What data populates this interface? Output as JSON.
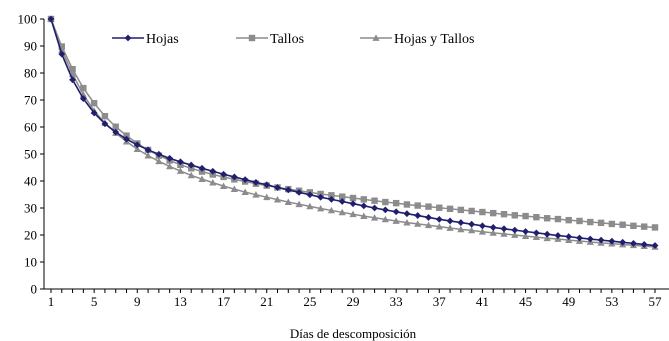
{
  "chart_data": {
    "type": "line",
    "title": "",
    "xlabel": "Días de descomposición",
    "ylabel": "",
    "ylim": [
      0,
      100
    ],
    "yticks": [
      0,
      10,
      20,
      30,
      40,
      50,
      60,
      70,
      80,
      90,
      100
    ],
    "xlim": [
      1,
      57
    ],
    "xticks": [
      1,
      5,
      9,
      13,
      17,
      21,
      25,
      29,
      33,
      37,
      41,
      45,
      49,
      53,
      57
    ],
    "xtick_labels": [
      "1",
      "5",
      "9",
      "13",
      "17",
      "21",
      "25",
      "29",
      "33",
      "37",
      "41",
      "45",
      "49",
      "53",
      "57"
    ],
    "grid": false,
    "legend_position": "top",
    "x": [
      1,
      2,
      3,
      4,
      5,
      6,
      7,
      8,
      9,
      10,
      11,
      12,
      13,
      14,
      15,
      16,
      17,
      18,
      19,
      20,
      21,
      22,
      23,
      24,
      25,
      26,
      27,
      28,
      29,
      30,
      31,
      32,
      33,
      34,
      35,
      36,
      37,
      38,
      39,
      40,
      41,
      42,
      43,
      44,
      45,
      46,
      47,
      48,
      49,
      50,
      51,
      52,
      53,
      54,
      55,
      56,
      57
    ],
    "series": [
      {
        "name": "Hojas",
        "color": "#1f1f6e",
        "marker": "diamond",
        "values": [
          100,
          87,
          77.5,
          70.5,
          65.2,
          61.2,
          58.1,
          55.5,
          53.4,
          51.5,
          49.9,
          48.4,
          47.1,
          45.9,
          44.7,
          43.6,
          42.5,
          41.5,
          40.5,
          39.5,
          38.6,
          37.6,
          36.7,
          35.8,
          34.9,
          34.0,
          33.2,
          32.4,
          31.6,
          30.8,
          30.0,
          29.3,
          28.6,
          27.9,
          27.2,
          26.5,
          25.8,
          25.2,
          24.6,
          24.0,
          23.4,
          22.8,
          22.3,
          21.8,
          21.3,
          20.8,
          20.3,
          19.8,
          19.4,
          18.9,
          18.5,
          18.1,
          17.7,
          17.3,
          16.9,
          16.5,
          16.1
        ]
      },
      {
        "name": "Tallos",
        "color": "#8c8c8c",
        "marker": "square",
        "values": [
          100,
          89.8,
          81.4,
          74.4,
          68.8,
          64.0,
          60.1,
          56.8,
          53.9,
          51.5,
          49.4,
          47.6,
          46.0,
          44.7,
          43.5,
          42.4,
          41.5,
          40.6,
          39.8,
          39.0,
          38.3,
          37.6,
          37.0,
          36.4,
          35.8,
          35.2,
          34.7,
          34.2,
          33.7,
          33.2,
          32.7,
          32.2,
          31.8,
          31.3,
          30.9,
          30.5,
          30.1,
          29.7,
          29.3,
          28.9,
          28.5,
          28.1,
          27.7,
          27.3,
          27.0,
          26.6,
          26.2,
          25.9,
          25.5,
          25.2,
          24.8,
          24.5,
          24.1,
          23.8,
          23.4,
          23.1,
          22.8
        ]
      },
      {
        "name": "Hojas y Tallos",
        "color": "#8c8c8c",
        "marker": "triangle",
        "values": [
          100,
          88.5,
          79.5,
          72.0,
          66.0,
          61.5,
          57.8,
          54.6,
          51.8,
          49.4,
          47.3,
          45.4,
          43.7,
          42.1,
          40.7,
          39.4,
          38.1,
          37.0,
          35.9,
          34.9,
          34.0,
          33.1,
          32.2,
          31.4,
          30.6,
          29.8,
          29.1,
          28.4,
          27.7,
          27.0,
          26.4,
          25.8,
          25.2,
          24.6,
          24.1,
          23.6,
          23.1,
          22.6,
          22.1,
          21.7,
          21.2,
          20.8,
          20.4,
          20.0,
          19.6,
          19.2,
          18.8,
          18.5,
          18.1,
          17.8,
          17.4,
          17.1,
          16.8,
          16.5,
          16.2,
          15.9,
          15.6
        ]
      }
    ]
  }
}
